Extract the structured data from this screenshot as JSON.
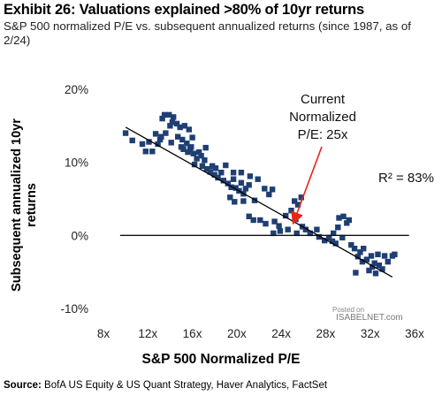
{
  "header": {
    "title": "Exhibit 26: Valuations explained >80% of 10yr returns",
    "subtitle": "S&P 500 normalized P/E vs. subsequent annualized returns (since 1987, as of 2/24)"
  },
  "footer": {
    "source_label": "Source:",
    "source_text": " BofA US Equity & US Quant Strategy, Haver Analytics, FactSet"
  },
  "watermark": {
    "line1": "Posted on",
    "line2": "ISABELNET.com"
  },
  "chart_data": {
    "type": "scatter",
    "title": "Exhibit 26: Valuations explained >80% of 10yr returns",
    "subtitle": "S&P 500 normalized P/E vs. subsequent annualized returns (since 1987, as of 2/24)",
    "xlabel": "S&P 500 Normalized P/E",
    "ylabel": "Subsequent annualized 10yr returns",
    "xlim": [
      8,
      36
    ],
    "ylim": [
      -10,
      20
    ],
    "x_ticks": [
      8,
      12,
      16,
      20,
      24,
      28,
      32,
      36
    ],
    "x_tick_labels": [
      "8x",
      "12x",
      "16x",
      "20x",
      "24x",
      "28x",
      "32x",
      "36x"
    ],
    "y_ticks": [
      20,
      10,
      0,
      -10
    ],
    "y_tick_labels": [
      "20%",
      "10%",
      "0%",
      "-10%"
    ],
    "zero_line": true,
    "grid": false,
    "marker_color": "#1f3f73",
    "trendline": {
      "x": [
        10,
        34
      ],
      "y": [
        14.8,
        -5.7
      ],
      "color": "#000000"
    },
    "annotations": [
      {
        "lines": [
          "Current",
          "Normalized",
          "P/E: 25x"
        ],
        "arrow_to": {
          "x": 25,
          "y": 1.5
        },
        "arrow_color": "#e8241a"
      },
      {
        "lines": [
          "R² = 83%"
        ]
      }
    ],
    "points": [
      [
        10,
        14
      ],
      [
        10.6,
        13
      ],
      [
        11.5,
        12.5
      ],
      [
        11.8,
        11.5
      ],
      [
        12.4,
        11.5
      ],
      [
        12.1,
        12.8
      ],
      [
        12.9,
        12.5
      ],
      [
        13.2,
        13.5
      ],
      [
        13.6,
        14
      ],
      [
        14,
        15
      ],
      [
        13.3,
        16
      ],
      [
        13.5,
        16.5
      ],
      [
        13.9,
        16.5
      ],
      [
        14.3,
        16.2
      ],
      [
        14.2,
        15.5
      ],
      [
        14.6,
        15.3
      ],
      [
        14.9,
        14.8
      ],
      [
        15.3,
        15
      ],
      [
        14.7,
        13.5
      ],
      [
        15.1,
        13.1
      ],
      [
        15.5,
        12.6
      ],
      [
        15.9,
        12.1
      ],
      [
        15.2,
        11.8
      ],
      [
        15.6,
        11.4
      ],
      [
        16.1,
        11.2
      ],
      [
        16.4,
        10.5
      ],
      [
        16.8,
        10.9
      ],
      [
        16.2,
        9.7
      ],
      [
        16.9,
        9.5
      ],
      [
        17.3,
        9.1
      ],
      [
        17.6,
        8.7
      ],
      [
        18,
        8.3
      ],
      [
        18.3,
        7.9
      ],
      [
        18.8,
        7.5
      ],
      [
        19.2,
        7.1
      ],
      [
        19.5,
        6.6
      ],
      [
        19.9,
        6.5
      ],
      [
        20.2,
        6.1
      ],
      [
        20.6,
        5.7
      ],
      [
        20.8,
        6.4
      ],
      [
        21.1,
        6.9
      ],
      [
        20.4,
        7.2
      ],
      [
        19.7,
        7.7
      ],
      [
        18.6,
        8.6
      ],
      [
        17.8,
        9.5
      ],
      [
        17.1,
        10.3
      ],
      [
        16.6,
        11.4
      ],
      [
        15.8,
        11.8
      ],
      [
        15,
        12.1
      ],
      [
        14.1,
        12.7
      ],
      [
        13.1,
        13.1
      ],
      [
        12.7,
        13.9
      ],
      [
        16,
        13.4
      ],
      [
        15.7,
        14.5
      ],
      [
        17.2,
        12
      ],
      [
        18.1,
        9.2
      ],
      [
        19,
        9.6
      ],
      [
        19.7,
        8.6
      ],
      [
        20.4,
        8.6
      ],
      [
        21.2,
        8.1
      ],
      [
        21.9,
        7.7
      ],
      [
        22.5,
        6.4
      ],
      [
        23.2,
        6.3
      ],
      [
        22.9,
        5.6
      ],
      [
        21.6,
        4.8
      ],
      [
        20.6,
        4.7
      ],
      [
        19.8,
        4.6
      ],
      [
        19.4,
        5.2
      ],
      [
        21.1,
        2.6
      ],
      [
        21.5,
        2.1
      ],
      [
        22.1,
        2.1
      ],
      [
        22.6,
        1.6
      ],
      [
        23.4,
        1.9
      ],
      [
        23.8,
        1.3
      ],
      [
        24.4,
        2.7
      ],
      [
        24.9,
        3.4
      ],
      [
        25.2,
        4.7
      ],
      [
        25.5,
        4.2
      ],
      [
        25.8,
        5.2
      ],
      [
        25.3,
        2.2
      ],
      [
        24.6,
        0.8
      ],
      [
        23.9,
        0.6
      ],
      [
        23.3,
        0.3
      ],
      [
        25.4,
        0.3
      ],
      [
        25.9,
        1.2
      ],
      [
        26.2,
        0.8
      ],
      [
        26.6,
        0.3
      ],
      [
        27.2,
        0.8
      ],
      [
        27.4,
        -0.2
      ],
      [
        27.9,
        -0.7
      ],
      [
        28.3,
        -0.3
      ],
      [
        28.6,
        -0.8
      ],
      [
        28.9,
        -1.1
      ],
      [
        29.2,
        2.4
      ],
      [
        29.6,
        2.6
      ],
      [
        30.1,
        2.1
      ],
      [
        29.9,
        1.7
      ],
      [
        29.1,
        1.1
      ],
      [
        28.7,
        0.3
      ],
      [
        29.5,
        -0.3
      ],
      [
        30.3,
        -1.3
      ],
      [
        30.6,
        -1.8
      ],
      [
        31.1,
        -2.3
      ],
      [
        31.4,
        -1.8
      ],
      [
        31.7,
        -3.3
      ],
      [
        32.1,
        -2.8
      ],
      [
        32.4,
        -3.8
      ],
      [
        32.7,
        -2.6
      ],
      [
        33.1,
        -4.6
      ],
      [
        32.2,
        -4.3
      ],
      [
        31.3,
        -3.6
      ],
      [
        30.9,
        -2.9
      ],
      [
        30.7,
        -5.1
      ],
      [
        33.3,
        -2.8
      ],
      [
        33.6,
        -3.6
      ],
      [
        34.2,
        -2.6
      ],
      [
        32.8,
        -4.1
      ],
      [
        31.9,
        -4.8
      ],
      [
        34,
        -2.8
      ],
      [
        32.5,
        -5.2
      ]
    ]
  }
}
